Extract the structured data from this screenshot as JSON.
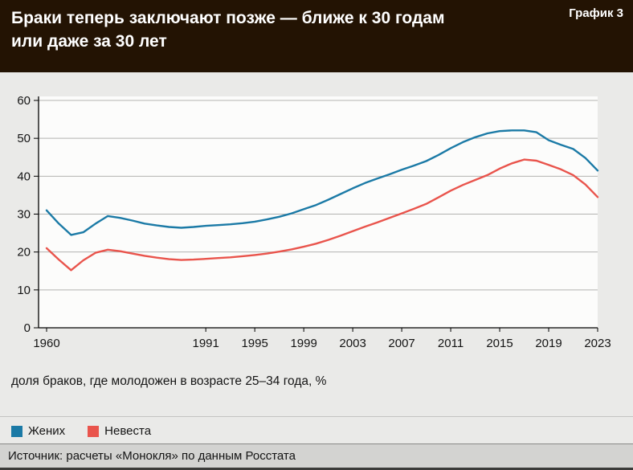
{
  "header": {
    "title_line1": "Браки теперь заключают позже — ближе к 30 годам",
    "title_line2": "или даже за 30 лет",
    "chart_label": "График 3"
  },
  "caption": "доля браков, где молодожен в возрасте 25–34 года, %",
  "legend": [
    {
      "label": "Жених",
      "color": "#1b7aa6"
    },
    {
      "label": "Невеста",
      "color": "#e9544c"
    }
  ],
  "source": "Источник: расчеты «Монокля» по данным Росстата",
  "colors": {
    "header_bg": "#231303",
    "page_bg": "#eaeae8",
    "plot_bg": "#fcfcfb",
    "grid": "#b3b3b1",
    "axis": "#000000",
    "groom": "#1b7aa6",
    "bride": "#e9544c"
  },
  "chart_data": {
    "type": "line",
    "x": [
      1960,
      1963,
      1965,
      1968,
      1970,
      1973,
      1975,
      1978,
      1980,
      1983,
      1985,
      1988,
      1990,
      1991,
      1992,
      1993,
      1994,
      1995,
      1996,
      1997,
      1998,
      1999,
      2000,
      2001,
      2002,
      2003,
      2004,
      2005,
      2006,
      2007,
      2008,
      2009,
      2010,
      2011,
      2012,
      2013,
      2014,
      2015,
      2016,
      2017,
      2018,
      2019,
      2020,
      2021,
      2022,
      2023
    ],
    "series": [
      {
        "name": "Жених",
        "color": "#1b7aa6",
        "values": [
          31.0,
          27.5,
          24.5,
          25.2,
          27.5,
          29.5,
          29.0,
          28.3,
          27.5,
          27.0,
          26.6,
          26.4,
          26.6,
          26.9,
          27.1,
          27.3,
          27.6,
          28.0,
          28.6,
          29.3,
          30.2,
          31.3,
          32.4,
          33.8,
          35.3,
          36.8,
          38.2,
          39.4,
          40.5,
          41.7,
          42.8,
          44.0,
          45.6,
          47.4,
          49.0,
          50.3,
          51.3,
          51.9,
          52.1,
          52.1,
          51.6,
          49.5,
          48.3,
          47.2,
          44.8,
          41.5
        ]
      },
      {
        "name": "Невеста",
        "color": "#e9544c",
        "values": [
          21.0,
          18.0,
          15.2,
          17.8,
          19.8,
          20.6,
          20.2,
          19.6,
          19.0,
          18.5,
          18.1,
          17.9,
          18.0,
          18.2,
          18.4,
          18.6,
          18.9,
          19.2,
          19.6,
          20.1,
          20.7,
          21.4,
          22.2,
          23.2,
          24.3,
          25.5,
          26.7,
          27.8,
          29.0,
          30.2,
          31.4,
          32.7,
          34.4,
          36.2,
          37.7,
          39.0,
          40.3,
          42.0,
          43.4,
          44.4,
          44.1,
          43.0,
          41.8,
          40.3,
          37.8,
          34.5
        ]
      }
    ],
    "ylim": [
      0,
      60
    ],
    "yticks": [
      0,
      10,
      20,
      30,
      40,
      50,
      60
    ],
    "x_tick_labels": [
      "1960",
      "1991",
      "1995",
      "1999",
      "2003",
      "2007",
      "2011",
      "2015",
      "2019",
      "2023"
    ],
    "x_tick_indices": [
      0,
      13,
      17,
      21,
      25,
      29,
      33,
      37,
      41,
      45
    ],
    "grid": true,
    "legend_position": "bottom",
    "title": "Браки теперь заключают позже — ближе к 30 годам или даже за 30 лет",
    "ylabel": "доля браков, где молодожен в возрасте 25–34 года, %"
  }
}
